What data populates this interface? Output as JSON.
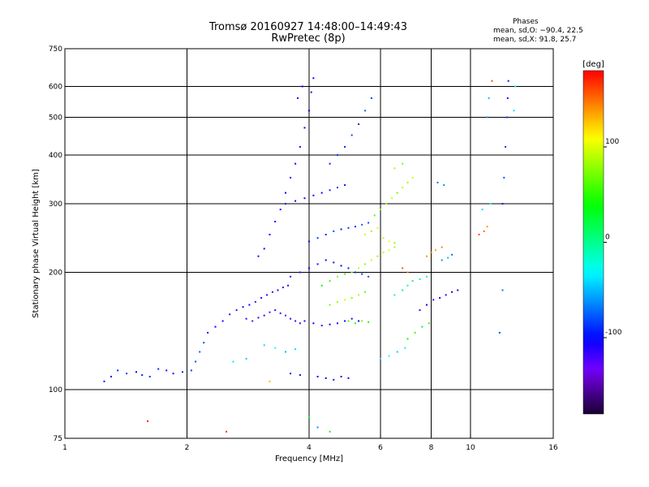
{
  "chart_data": {
    "type": "scatter",
    "title": "Tromsø 20160927 14:48:00–14:49:43",
    "subtitle": "RwPretec (8p)",
    "xlabel": "Frequency [MHz]",
    "ylabel": "Stationary phase Virtual Height [km]",
    "x_scale": "log",
    "y_scale": "log",
    "xlim": [
      1,
      16
    ],
    "ylim": [
      75,
      750
    ],
    "x_ticks": [
      1,
      2,
      4,
      6,
      8,
      10,
      16
    ],
    "y_ticks": [
      75,
      100,
      200,
      300,
      400,
      500,
      600,
      750
    ],
    "grid": true,
    "phases_title": "Phases",
    "phases_lines": [
      "mean, sd,O: −90.4, 22.5",
      "mean, sd,X:  91.8, 25.7"
    ],
    "colorbar": {
      "label": "[deg]",
      "range": [
        -180,
        180
      ],
      "ticks": [
        100,
        0,
        -100
      ],
      "colormap": "rainbow"
    },
    "points": [
      [
        1.25,
        105,
        -95
      ],
      [
        1.3,
        108,
        -100
      ],
      [
        1.35,
        112,
        -90
      ],
      [
        1.42,
        110,
        -85
      ],
      [
        1.5,
        111,
        -105
      ],
      [
        1.55,
        109,
        -95
      ],
      [
        1.62,
        108,
        -88
      ],
      [
        1.7,
        113,
        -92
      ],
      [
        1.78,
        112,
        -110
      ],
      [
        1.85,
        110,
        -95
      ],
      [
        1.95,
        111,
        -90
      ],
      [
        2.05,
        112,
        -85
      ],
      [
        2.1,
        118,
        -80
      ],
      [
        2.15,
        125,
        -75
      ],
      [
        2.2,
        132,
        -80
      ],
      [
        2.25,
        140,
        -95
      ],
      [
        2.35,
        145,
        -105
      ],
      [
        2.45,
        150,
        -110
      ],
      [
        2.55,
        156,
        -115
      ],
      [
        2.65,
        160,
        -120
      ],
      [
        2.75,
        163,
        -110
      ],
      [
        2.85,
        165,
        -105
      ],
      [
        2.95,
        168,
        -125
      ],
      [
        3.05,
        172,
        -118
      ],
      [
        3.15,
        175,
        -115
      ],
      [
        3.25,
        178,
        -120
      ],
      [
        3.35,
        180,
        -112
      ],
      [
        3.45,
        183,
        -118
      ],
      [
        3.55,
        185,
        -108
      ],
      [
        2.8,
        152,
        -120
      ],
      [
        2.9,
        150,
        -128
      ],
      [
        3.0,
        153,
        -118
      ],
      [
        3.1,
        155,
        -125
      ],
      [
        3.2,
        158,
        -130
      ],
      [
        3.3,
        160,
        -115
      ],
      [
        3.4,
        157,
        -122
      ],
      [
        3.5,
        155,
        -128
      ],
      [
        3.6,
        152,
        -118
      ],
      [
        3.7,
        150,
        -125
      ],
      [
        3.8,
        148,
        -120
      ],
      [
        3.0,
        220,
        -110
      ],
      [
        3.1,
        230,
        -105
      ],
      [
        3.2,
        250,
        -100
      ],
      [
        3.3,
        270,
        -108
      ],
      [
        3.4,
        290,
        -112
      ],
      [
        3.5,
        320,
        -100
      ],
      [
        3.6,
        350,
        -95
      ],
      [
        3.7,
        380,
        -105
      ],
      [
        3.8,
        420,
        -110
      ],
      [
        3.9,
        470,
        -100
      ],
      [
        4.0,
        520,
        -105
      ],
      [
        4.05,
        580,
        -95
      ],
      [
        4.1,
        630,
        -100
      ],
      [
        3.75,
        560,
        -110
      ],
      [
        3.85,
        600,
        -105
      ],
      [
        3.6,
        195,
        -115
      ],
      [
        3.8,
        200,
        -120
      ],
      [
        4.0,
        205,
        -110
      ],
      [
        4.2,
        210,
        -115
      ],
      [
        4.4,
        215,
        -105
      ],
      [
        4.6,
        212,
        -95
      ],
      [
        4.8,
        208,
        -100
      ],
      [
        5.0,
        205,
        -95
      ],
      [
        5.2,
        200,
        -90
      ],
      [
        5.4,
        198,
        -85
      ],
      [
        5.6,
        195,
        -80
      ],
      [
        4.0,
        240,
        -95
      ],
      [
        4.2,
        245,
        -85
      ],
      [
        4.4,
        250,
        -90
      ],
      [
        4.6,
        255,
        -80
      ],
      [
        4.8,
        258,
        -95
      ],
      [
        5.0,
        260,
        -85
      ],
      [
        5.2,
        262,
        -90
      ],
      [
        5.4,
        265,
        -75
      ],
      [
        5.6,
        268,
        -80
      ],
      [
        3.5,
        300,
        -105
      ],
      [
        3.7,
        305,
        -100
      ],
      [
        3.9,
        310,
        -108
      ],
      [
        4.1,
        315,
        -95
      ],
      [
        4.3,
        320,
        -100
      ],
      [
        4.5,
        325,
        -90
      ],
      [
        4.7,
        330,
        -85
      ],
      [
        4.9,
        335,
        -95
      ],
      [
        4.5,
        380,
        -90
      ],
      [
        4.7,
        400,
        -85
      ],
      [
        4.9,
        420,
        -95
      ],
      [
        5.1,
        450,
        -80
      ],
      [
        5.3,
        480,
        -90
      ],
      [
        5.5,
        520,
        -75
      ],
      [
        5.7,
        560,
        -85
      ],
      [
        3.9,
        150,
        -110
      ],
      [
        4.1,
        148,
        -105
      ],
      [
        4.3,
        146,
        -115
      ],
      [
        4.5,
        147,
        -110
      ],
      [
        4.7,
        148,
        -100
      ],
      [
        4.9,
        150,
        -105
      ],
      [
        5.1,
        152,
        -95
      ],
      [
        5.3,
        150,
        -100
      ],
      [
        4.2,
        108,
        -100
      ],
      [
        4.4,
        107,
        -105
      ],
      [
        4.6,
        106,
        -95
      ],
      [
        4.8,
        108,
        -100
      ],
      [
        5.0,
        107,
        -110
      ],
      [
        3.6,
        110,
        -95
      ],
      [
        3.8,
        109,
        -100
      ],
      [
        4.3,
        185,
        40
      ],
      [
        4.5,
        190,
        55
      ],
      [
        4.7,
        195,
        70
      ],
      [
        4.9,
        198,
        60
      ],
      [
        5.1,
        200,
        85
      ],
      [
        5.3,
        205,
        90
      ],
      [
        5.5,
        210,
        75
      ],
      [
        5.7,
        215,
        95
      ],
      [
        5.9,
        220,
        80
      ],
      [
        6.1,
        225,
        90
      ],
      [
        6.3,
        228,
        100
      ],
      [
        6.5,
        232,
        85
      ],
      [
        4.5,
        165,
        70
      ],
      [
        4.7,
        168,
        80
      ],
      [
        4.9,
        170,
        95
      ],
      [
        5.1,
        172,
        75
      ],
      [
        5.3,
        175,
        88
      ],
      [
        5.5,
        178,
        65
      ],
      [
        5.8,
        280,
        60
      ],
      [
        6.0,
        290,
        75
      ],
      [
        6.2,
        300,
        85
      ],
      [
        6.4,
        310,
        95
      ],
      [
        6.6,
        320,
        70
      ],
      [
        6.8,
        330,
        90
      ],
      [
        7.0,
        340,
        80
      ],
      [
        7.2,
        350,
        95
      ],
      [
        6.5,
        370,
        85
      ],
      [
        6.8,
        380,
        70
      ],
      [
        5.5,
        250,
        95
      ],
      [
        5.7,
        255,
        85
      ],
      [
        5.9,
        260,
        100
      ],
      [
        6.1,
        245,
        90
      ],
      [
        6.3,
        240,
        105
      ],
      [
        6.5,
        238,
        80
      ],
      [
        6.5,
        175,
        -15
      ],
      [
        6.8,
        180,
        5
      ],
      [
        7.0,
        185,
        -5
      ],
      [
        7.2,
        190,
        10
      ],
      [
        7.5,
        192,
        -10
      ],
      [
        7.8,
        195,
        0
      ],
      [
        7.5,
        160,
        -95
      ],
      [
        7.8,
        165,
        -110
      ],
      [
        8.1,
        170,
        -120
      ],
      [
        8.4,
        172,
        -105
      ],
      [
        8.7,
        175,
        -115
      ],
      [
        9.0,
        178,
        -100
      ],
      [
        9.3,
        180,
        -110
      ],
      [
        7.8,
        220,
        140
      ],
      [
        8.0,
        225,
        150
      ],
      [
        8.2,
        228,
        135
      ],
      [
        8.5,
        232,
        145
      ],
      [
        6.8,
        205,
        155
      ],
      [
        7.0,
        200,
        145
      ],
      [
        7.0,
        135,
        40
      ],
      [
        7.3,
        140,
        55
      ],
      [
        7.6,
        145,
        35
      ],
      [
        7.9,
        148,
        50
      ],
      [
        8.5,
        215,
        -60
      ],
      [
        8.8,
        218,
        -50
      ],
      [
        9.0,
        222,
        -70
      ],
      [
        8.3,
        340,
        -70
      ],
      [
        8.6,
        335,
        -60
      ],
      [
        10.5,
        250,
        160
      ],
      [
        10.8,
        255,
        150
      ],
      [
        11.0,
        262,
        140
      ],
      [
        10.7,
        290,
        -40
      ],
      [
        11.2,
        300,
        -30
      ],
      [
        12.0,
        300,
        -95
      ],
      [
        12.1,
        350,
        -80
      ],
      [
        12.2,
        420,
        -90
      ],
      [
        12.3,
        500,
        -85
      ],
      [
        12.35,
        560,
        -100
      ],
      [
        12.4,
        620,
        -95
      ],
      [
        12.0,
        180,
        -70
      ],
      [
        11.8,
        140,
        -80
      ],
      [
        11.0,
        500,
        -60
      ],
      [
        11.1,
        560,
        -50
      ],
      [
        11.3,
        620,
        160
      ],
      [
        12.8,
        520,
        -40
      ],
      [
        12.9,
        600,
        -30
      ],
      [
        3.1,
        130,
        -40
      ],
      [
        3.3,
        128,
        -30
      ],
      [
        3.5,
        125,
        -50
      ],
      [
        3.7,
        127,
        -40
      ],
      [
        2.6,
        118,
        -35
      ],
      [
        2.8,
        120,
        -45
      ],
      [
        5.0,
        150,
        60
      ],
      [
        5.2,
        148,
        50
      ],
      [
        5.4,
        150,
        70
      ],
      [
        5.6,
        149,
        45
      ],
      [
        6.0,
        120,
        -40
      ],
      [
        6.3,
        122,
        -30
      ],
      [
        6.6,
        125,
        -45
      ],
      [
        6.9,
        128,
        -35
      ],
      [
        4.0,
        85,
        20
      ],
      [
        4.2,
        80,
        -60
      ],
      [
        4.5,
        78,
        40
      ],
      [
        1.6,
        83,
        170
      ],
      [
        2.5,
        78,
        165
      ],
      [
        3.2,
        105,
        130
      ]
    ]
  }
}
